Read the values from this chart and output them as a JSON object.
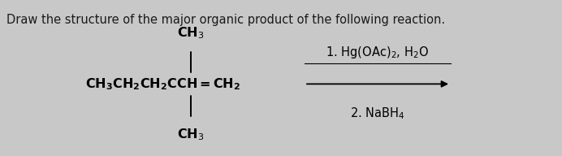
{
  "title": "Draw the structure of the major organic product of the following reaction.",
  "title_fontsize": 10.5,
  "title_color": "#1a1a1a",
  "top_bar_color": "#555555",
  "background_color": "#c8c8c8",
  "body_background": "#e0e0e0",
  "top_substituent": "CH$_3$",
  "bottom_substituent": "CH$_3$",
  "reagent_line1": "1. Hg(OAc)$_2$, H$_2$O",
  "reagent_line2": "2. NaBH$_4$",
  "formula_fontsize": 11.5,
  "reagent_fontsize": 10.5,
  "top_bar_height": 0.055
}
